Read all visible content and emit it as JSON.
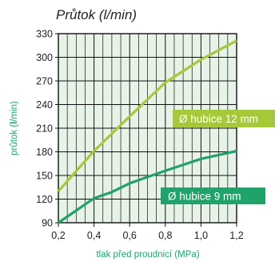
{
  "chart_data": {
    "type": "line",
    "title": "Průtok (l/min)",
    "xlabel": "tlak před proudnicí (MPa)",
    "ylabel": "průtok (l/min)",
    "ylabel_bold_part": "l",
    "x": [
      0.2,
      0.4,
      0.6,
      0.8,
      1.0,
      1.2
    ],
    "x_tick_labels": [
      "0,2",
      "0,4",
      "0,6",
      "0,8",
      "1,0",
      "1,2"
    ],
    "y_ticks": [
      90,
      120,
      150,
      180,
      210,
      240,
      270,
      300,
      330
    ],
    "xlim": [
      0.2,
      1.2
    ],
    "ylim": [
      90,
      330
    ],
    "grid": true,
    "grid_background": "#e8f3e8",
    "series": [
      {
        "name": "Ø hubice 12 mm",
        "label_position": "right-middle",
        "color": "#a6c93a",
        "points": [
          [
            0.2,
            130
          ],
          [
            0.4,
            181
          ],
          [
            0.5,
            203
          ],
          [
            0.6,
            225
          ],
          [
            0.8,
            268
          ],
          [
            1.0,
            297
          ],
          [
            1.2,
            321
          ]
        ]
      },
      {
        "name": "Ø hubice 9 mm",
        "label_position": "right-lower",
        "color": "#1fa36a",
        "points": [
          [
            0.2,
            90
          ],
          [
            0.4,
            121
          ],
          [
            0.5,
            129
          ],
          [
            0.6,
            140
          ],
          [
            0.8,
            156
          ],
          [
            1.0,
            171
          ],
          [
            1.2,
            181
          ]
        ]
      }
    ],
    "axis_label_color": "#1fa36a"
  }
}
